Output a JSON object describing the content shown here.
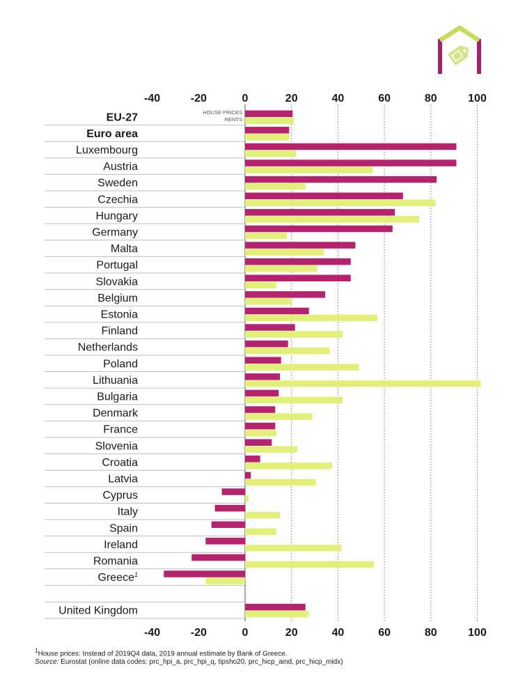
{
  "chart_data": {
    "type": "bar",
    "orientation": "horizontal",
    "categories": [
      "EU-27",
      "Euro area",
      "Luxembourg",
      "Austria",
      "Sweden",
      "Czechia",
      "Hungary",
      "Germany",
      "Malta",
      "Portugal",
      "Slovakia",
      "Belgium",
      "Estonia",
      "Finland",
      "Netherlands",
      "Poland",
      "Lithuania",
      "Bulgaria",
      "Denmark",
      "France",
      "Slovenia",
      "Croatia",
      "Latvia",
      "Cyprus",
      "Italy",
      "Spain",
      "Ireland",
      "Romania",
      "Greece",
      "United Kingdom"
    ],
    "greece_footnote_mark": "1",
    "series": [
      {
        "name": "HOUSE PRICES",
        "color": "#b5236e",
        "values": [
          20.5,
          19,
          91,
          91,
          82.5,
          68,
          64.5,
          63.5,
          47.5,
          45.5,
          45.5,
          34.5,
          27.5,
          21.5,
          18.5,
          15.5,
          15,
          14.5,
          13,
          13,
          11.5,
          6.5,
          2.5,
          -10,
          -13,
          -14.5,
          -17,
          -23,
          -35,
          26
        ]
      },
      {
        "name": "RENTS",
        "color": "#e2f07a",
        "values": [
          21,
          19,
          22,
          55,
          26,
          82,
          75,
          18,
          34,
          31,
          13.5,
          20,
          57,
          42,
          36.5,
          49,
          101.5,
          42,
          29,
          13.5,
          22.5,
          37.5,
          30.5,
          1.5,
          15,
          13.5,
          41.5,
          55.5,
          -17,
          27.5
        ]
      }
    ],
    "xlim": [
      -40,
      100
    ],
    "xticks": [
      "-40",
      "-20",
      "0",
      "20",
      "40",
      "60",
      "80",
      "100"
    ],
    "grid": "vertical-dashed",
    "legend_placement": "inline-top-left-of-zero"
  },
  "footnotes": {
    "note_mark": "1",
    "note_text": "House prices: Instead of 2019Q4 data, 2019 annual estimate by Bank of Greece.",
    "source_label": "Source:",
    "source_text": " Eurostat (online data codes: prc_hpi_a, prc_hpi_q, tipsho20, prc_hicp_aind, prc_hicp_midx)"
  },
  "logo": {
    "icon": "house-price-tag-icon",
    "colors": [
      "#a61e6a",
      "#c8dc5a"
    ]
  }
}
